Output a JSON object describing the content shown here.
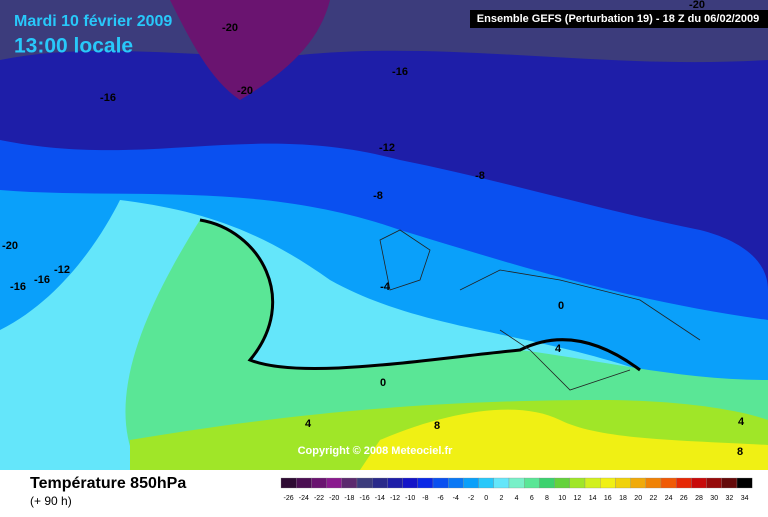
{
  "header": {
    "date": "Mardi 10 février 2009",
    "time": "13:00 locale",
    "model": "Ensemble GEFS (Perturbation 19)  -  18 Z du 06/02/2009"
  },
  "contour_labels": [
    "-20",
    "-20",
    "-16",
    "-16",
    "-12",
    "-8",
    "-8",
    "-20",
    "-12",
    "-16",
    "-16",
    "-4",
    "0",
    "0",
    "4",
    "4",
    "8",
    "8",
    "4",
    "-20"
  ],
  "copyright": "Copyright © 2008 Meteociel.fr",
  "footer": {
    "title": "Température 850hPa",
    "lead": "(+ 90 h)"
  },
  "legend": {
    "labels": [
      -26,
      -24,
      -22,
      -20,
      -18,
      -16,
      -14,
      -12,
      -10,
      -8,
      -6,
      -4,
      -2,
      0,
      2,
      4,
      6,
      8,
      10,
      12,
      14,
      16,
      18,
      20,
      22,
      24,
      26,
      28,
      30,
      32,
      34
    ],
    "colors": [
      "#2e0b33",
      "#4b0f52",
      "#6a1470",
      "#8a1a8e",
      "#5c2a6e",
      "#3c3c7c",
      "#2a2a8a",
      "#1e1ea8",
      "#1414c8",
      "#0a28e6",
      "#0a50f0",
      "#0a78f5",
      "#0aa0fa",
      "#28c8fa",
      "#64e6fa",
      "#78f0c8",
      "#5ae696",
      "#3cd26e",
      "#64d23c",
      "#a0e628",
      "#d2f01e",
      "#f0f014",
      "#f0d20a",
      "#f0aa0a",
      "#f08205",
      "#f05a05",
      "#e62805",
      "#c80a0a",
      "#960a0a",
      "#640a0a",
      "#000000"
    ]
  }
}
